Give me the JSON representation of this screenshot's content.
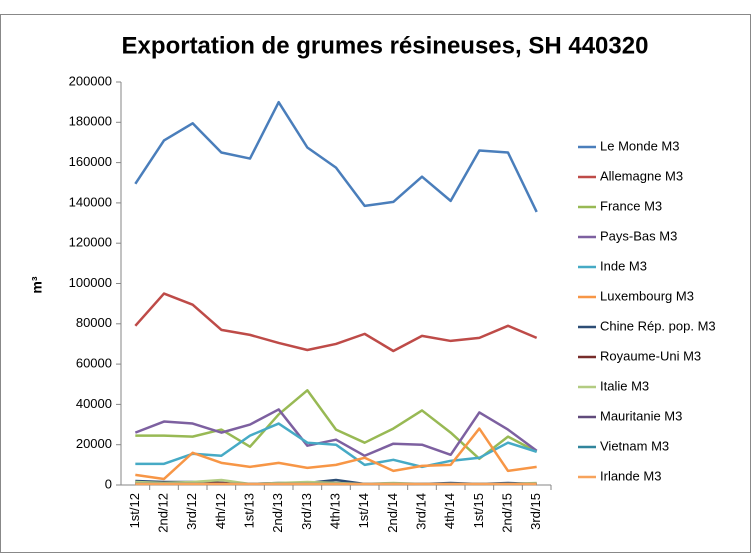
{
  "chart_data": {
    "type": "line",
    "title": "Exportation de grumes résineuses, SH 440320",
    "ylabel": "m³",
    "categories": [
      "1st/12",
      "2nd/12",
      "3rd/12",
      "4th/12",
      "1st/13",
      "2nd/13",
      "3rd/13",
      "4th/13",
      "1st/14",
      "2nd/14",
      "3rd/14",
      "4th/14",
      "1st/15",
      "2nd/15",
      "3rd/15"
    ],
    "ylim": [
      0,
      200000
    ],
    "yticks": [
      0,
      20000,
      40000,
      60000,
      80000,
      100000,
      120000,
      140000,
      160000,
      180000,
      200000
    ],
    "grid": false,
    "legend": "right",
    "series": [
      {
        "name": "Le Monde M3",
        "color": "#4a7ebb",
        "values": [
          149500,
          171000,
          179500,
          165000,
          162000,
          190000,
          167500,
          157500,
          138500,
          140500,
          153000,
          141000,
          166000,
          165000,
          135500
        ]
      },
      {
        "name": "Allemagne M3",
        "color": "#be4b48",
        "values": [
          79000,
          95000,
          89500,
          77000,
          74500,
          70500,
          67000,
          70000,
          75000,
          66500,
          74000,
          71500,
          73000,
          79000,
          73000
        ]
      },
      {
        "name": "France M3",
        "color": "#98b954",
        "values": [
          24500,
          24500,
          24000,
          27500,
          19000,
          35000,
          47000,
          27500,
          21000,
          28000,
          37000,
          26000,
          13000,
          24000,
          16500
        ]
      },
      {
        "name": "Pays-Bas M3",
        "color": "#7d60a0",
        "values": [
          26000,
          31500,
          30500,
          26000,
          30000,
          37500,
          19500,
          22500,
          14500,
          20500,
          20000,
          15000,
          36000,
          27500,
          17000
        ]
      },
      {
        "name": "Inde M3",
        "color": "#46aac5",
        "values": [
          10500,
          10500,
          15500,
          14500,
          24500,
          30500,
          21000,
          20000,
          10000,
          12500,
          9000,
          12000,
          13500,
          21000,
          16500
        ]
      },
      {
        "name": "Luxembourg M3",
        "color": "#f79646",
        "values": [
          5000,
          3000,
          16000,
          11000,
          9000,
          11000,
          8500,
          10000,
          13500,
          7000,
          9500,
          10000,
          28000,
          7000,
          9000
        ]
      },
      {
        "name": "Chine Rép. pop. M3",
        "color": "#2c4d75",
        "values": [
          2000,
          1500,
          1500,
          1000,
          500,
          1000,
          1000,
          2500,
          500,
          500,
          500,
          1000,
          500,
          1000,
          500
        ]
      },
      {
        "name": "Royaume-Uni M3",
        "color": "#772c2a",
        "values": [
          1000,
          1000,
          1000,
          1000,
          500,
          500,
          500,
          500,
          500,
          500,
          500,
          500,
          500,
          500,
          500
        ]
      },
      {
        "name": "Italie M3",
        "color": "#b3cc82",
        "values": [
          1500,
          1000,
          1500,
          2500,
          500,
          1000,
          1500,
          1000,
          500,
          1000,
          500,
          500,
          500,
          500,
          1000
        ]
      },
      {
        "name": "Mauritanie M3",
        "color": "#604a7b",
        "values": [
          500,
          500,
          500,
          500,
          500,
          500,
          500,
          500,
          500,
          500,
          500,
          500,
          500,
          500,
          500
        ]
      },
      {
        "name": "Vietnam M3",
        "color": "#31859c",
        "values": [
          500,
          500,
          500,
          500,
          500,
          500,
          500,
          500,
          500,
          500,
          500,
          500,
          500,
          500,
          500
        ]
      },
      {
        "name": "Irlande M3",
        "color": "#f7a35c",
        "values": [
          500,
          500,
          500,
          500,
          500,
          500,
          500,
          500,
          500,
          500,
          500,
          500,
          500,
          500,
          500
        ]
      }
    ]
  }
}
